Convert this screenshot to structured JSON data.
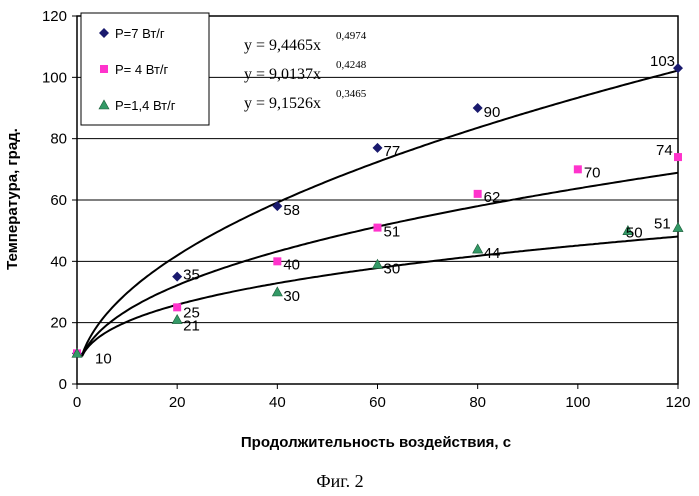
{
  "chart_data": {
    "type": "scatter",
    "xlabel": "Продолжительность воздействия, с",
    "ylabel": "Температура, град.",
    "caption": "Фиг. 2",
    "xlim": [
      0,
      120
    ],
    "ylim": [
      0,
      120
    ],
    "xticks": [
      "0",
      "20",
      "40",
      "60",
      "80",
      "100",
      "120"
    ],
    "yticks": [
      "0",
      "20",
      "40",
      "60",
      "80",
      "100",
      "120"
    ],
    "grid": "horizontal",
    "legend_position": "top-left",
    "series": [
      {
        "name": "P=7 Вт/г",
        "marker": "diamond",
        "color": "#1a1a6e",
        "points": [
          [
            0,
            10
          ],
          [
            20,
            35
          ],
          [
            40,
            58
          ],
          [
            60,
            77
          ],
          [
            80,
            90
          ],
          [
            120,
            103
          ]
        ],
        "labels": [
          "10",
          "35",
          "58",
          "77",
          "90",
          "103"
        ],
        "trend": {
          "equation": "y = 9,4465x",
          "exponent": "0,4974",
          "a": 9.4465,
          "b": 0.4974
        }
      },
      {
        "name": "P= 4 Вт/г",
        "marker": "square",
        "color": "#ff33cc",
        "points": [
          [
            0,
            10
          ],
          [
            20,
            25
          ],
          [
            40,
            40
          ],
          [
            60,
            51
          ],
          [
            80,
            62
          ],
          [
            100,
            70
          ],
          [
            120,
            74
          ]
        ],
        "labels": [
          "25",
          "40",
          "51",
          "62",
          "70",
          "74"
        ],
        "trend": {
          "equation": "y = 9,0137x",
          "exponent": "0,4248",
          "a": 9.0137,
          "b": 0.4248
        }
      },
      {
        "name": "P=1,4 Вт/г",
        "marker": "triangle",
        "color": "#339966",
        "points": [
          [
            0,
            10
          ],
          [
            20,
            21
          ],
          [
            40,
            30
          ],
          [
            60,
            39
          ],
          [
            80,
            44
          ],
          [
            110,
            50
          ],
          [
            120,
            51
          ]
        ],
        "labels": [
          "21",
          "30",
          "30",
          "44",
          "50",
          "51"
        ],
        "trend": {
          "equation": "y = 9,1526x",
          "exponent": "0,3465",
          "a": 9.1526,
          "b": 0.3465
        }
      }
    ]
  }
}
